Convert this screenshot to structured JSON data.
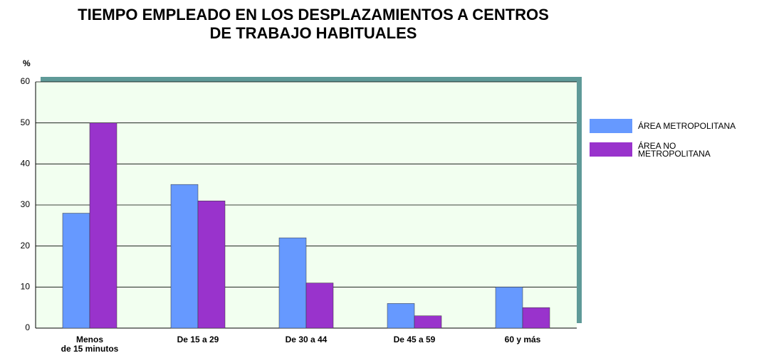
{
  "chart_data": {
    "type": "bar",
    "title": "TIEMPO EMPLEADO EN LOS DESPLAZAMIENTOS A CENTROS\nDE TRABAJO HABITUALES",
    "y_label": "%",
    "categories": [
      "Menos\nde 15 minutos",
      "De 15 a 29",
      "De 30 a 44",
      "De 45 a 59",
      "60 y  más"
    ],
    "series": [
      {
        "name": "ÁREA METROPOLITANA",
        "color": "#6699ff",
        "values": [
          28,
          35,
          22,
          6,
          10
        ]
      },
      {
        "name": "ÁREA NO\nMETROPOLITANA",
        "color": "#9933cc",
        "values": [
          50,
          31,
          11,
          3,
          5
        ]
      }
    ],
    "ylim": [
      0,
      60
    ],
    "yticks": [
      0,
      10,
      20,
      30,
      40,
      50,
      60
    ],
    "grid": true,
    "legend": "right"
  }
}
